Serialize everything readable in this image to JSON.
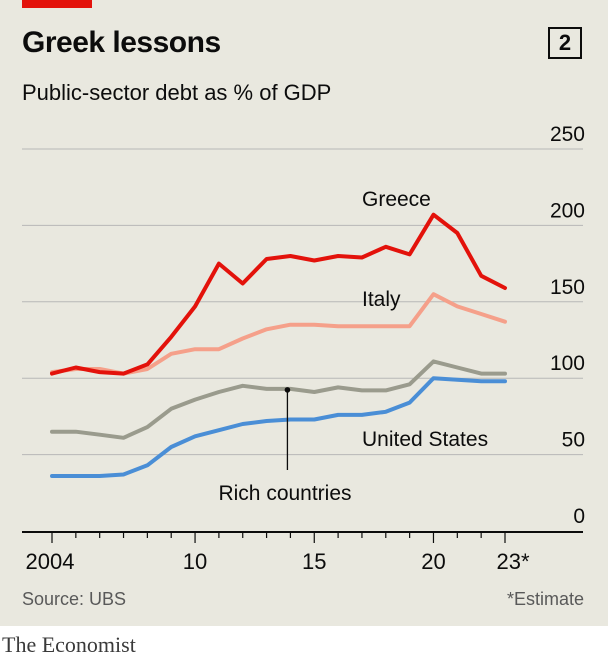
{
  "header": {
    "title": "Greek lessons",
    "chart_number": "2",
    "subtitle": "Public-sector debt as % of GDP"
  },
  "footer": {
    "source": "Source: UBS",
    "footnote": "*Estimate",
    "brand": "The Economist"
  },
  "colors": {
    "panel_background": "#e9e8df",
    "accent_tab": "#e3120b",
    "grid": "#b7b7b7",
    "axis": "#0c0c0c"
  },
  "chart_data": {
    "type": "line",
    "title": "Greek lessons",
    "subtitle": "Public-sector debt as % of GDP",
    "xlabel": "",
    "ylabel": "",
    "x": [
      2004,
      2005,
      2006,
      2007,
      2008,
      2009,
      2010,
      2011,
      2012,
      2013,
      2014,
      2015,
      2016,
      2017,
      2018,
      2019,
      2020,
      2021,
      2022,
      2023
    ],
    "x_tick_labels": [
      "2004",
      "10",
      "15",
      "20",
      "23*"
    ],
    "x_tick_values": [
      2004,
      2010,
      2015,
      2020,
      2023
    ],
    "xlim": [
      2003.5,
      2023.5
    ],
    "ylim": [
      0,
      250
    ],
    "y_ticks": [
      0,
      50,
      100,
      150,
      200,
      250
    ],
    "y_tick_labels": [
      "0",
      "50",
      "100",
      "150",
      "200",
      "250"
    ],
    "grid": true,
    "series": [
      {
        "name": "Greece",
        "color": "#e3120b",
        "values": [
          103,
          107,
          104,
          103,
          109,
          127,
          147,
          175,
          162,
          178,
          180,
          177,
          180,
          179,
          186,
          181,
          207,
          195,
          167,
          159
        ]
      },
      {
        "name": "Italy",
        "color": "#f5a08a",
        "values": [
          104,
          106,
          106,
          103,
          106,
          116,
          119,
          119,
          126,
          132,
          135,
          135,
          134,
          134,
          134,
          134,
          155,
          147,
          142,
          137
        ]
      },
      {
        "name": "Rich countries",
        "color": "#9a9b8d",
        "values": [
          65,
          65,
          63,
          61,
          68,
          80,
          86,
          91,
          95,
          93,
          93,
          91,
          94,
          92,
          92,
          96,
          111,
          107,
          103,
          103
        ]
      },
      {
        "name": "United States",
        "color": "#4a8ed6",
        "values": [
          36,
          36,
          36,
          37,
          43,
          55,
          62,
          66,
          70,
          72,
          73,
          73,
          76,
          76,
          78,
          84,
          100,
          99,
          98,
          98
        ]
      }
    ]
  }
}
